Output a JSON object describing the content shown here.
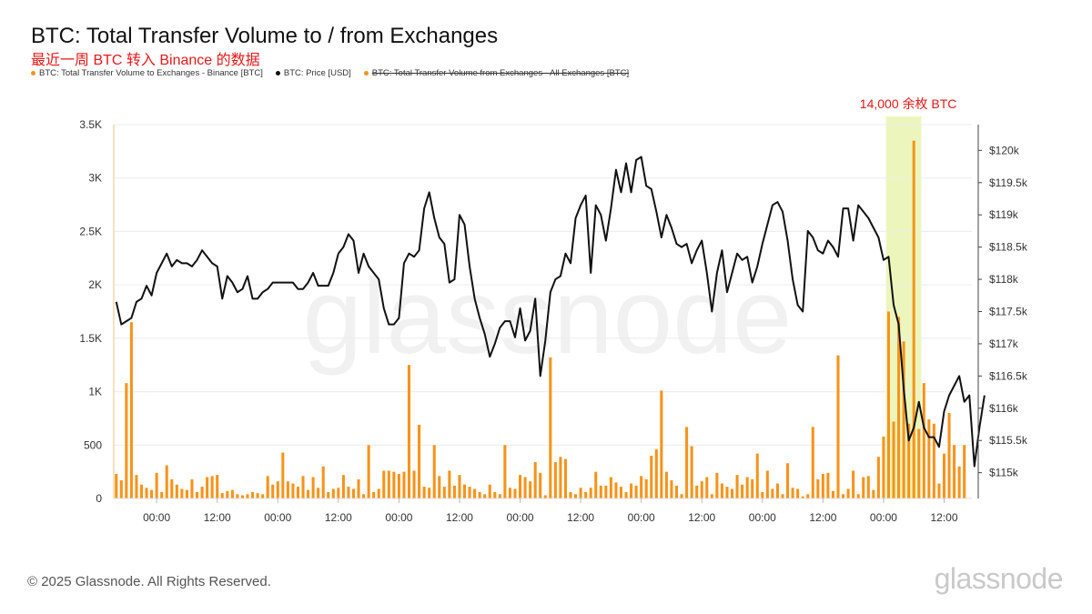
{
  "header": {
    "title": "BTC: Total Transfer Volume to / from Exchanges",
    "subtitle": "最近一周 BTC 转入 Binance 的数据"
  },
  "legend": [
    {
      "label": "BTC: Total Transfer Volume to Exchanges - Binance [BTC]",
      "color": "#f7931a",
      "struck": false
    },
    {
      "label": "BTC: Price [USD]",
      "color": "#111111",
      "struck": false
    },
    {
      "label": "BTC: Total Transfer Volume from Exchanges - All Exchanges [BTC]",
      "color": "#f7931a",
      "struck": true
    }
  ],
  "watermark": "glassnode",
  "annotation": "14,000 余枚 BTC",
  "footer": {
    "copyright": "© 2025 Glassnode. All Rights Reserved.",
    "logo": "glassnode"
  },
  "colors": {
    "bar": "#f7931a",
    "price": "#111111",
    "highlight": "#e9f5b0",
    "annotation": "#e8191a"
  },
  "chart_data": {
    "type": "bar",
    "x_tick_labels": [
      "00:00",
      "12:00",
      "00:00",
      "12:00",
      "00:00",
      "12:00",
      "00:00",
      "12:00",
      "00:00",
      "12:00",
      "00:00",
      "12:00",
      "00:00",
      "12:00"
    ],
    "x_tick_hours": [
      8,
      20,
      32,
      44,
      56,
      68,
      80,
      92,
      104,
      116,
      128,
      140,
      152,
      164
    ],
    "x_range_hours": [
      -0.5,
      169.5
    ],
    "interval_hours": 1,
    "left_axis": {
      "ticks": [
        0,
        500,
        1000,
        1500,
        2000,
        2500,
        3000,
        3500
      ],
      "labels": [
        "0",
        "500",
        "1K",
        "1.5K",
        "2K",
        "2.5K",
        "3K",
        "3.5K"
      ],
      "range": [
        0,
        3500
      ]
    },
    "right_axis": {
      "ticks": [
        115000,
        115500,
        116000,
        116500,
        117000,
        117500,
        118000,
        118500,
        119000,
        119500,
        120000
      ],
      "labels": [
        "$115k",
        "$115.5k",
        "$116k",
        "$116.5k",
        "$117k",
        "$117.5k",
        "$118k",
        "$118.5k",
        "$119k",
        "$119.5k",
        "$120k"
      ],
      "range": [
        114600,
        120400
      ]
    },
    "highlight_hours": [
      152.5,
      159.5
    ],
    "series": [
      {
        "name": "BTC: Total Transfer Volume to Exchanges - Binance [BTC]",
        "kind": "bar",
        "axis": "left",
        "values": [
          230,
          170,
          1080,
          1650,
          220,
          130,
          100,
          80,
          240,
          60,
          310,
          180,
          130,
          90,
          80,
          180,
          60,
          110,
          200,
          210,
          220,
          50,
          70,
          80,
          40,
          30,
          40,
          60,
          50,
          40,
          210,
          130,
          160,
          430,
          160,
          140,
          110,
          210,
          80,
          200,
          100,
          300,
          60,
          90,
          100,
          220,
          110,
          90,
          180,
          40,
          500,
          60,
          90,
          260,
          260,
          250,
          230,
          250,
          1250,
          260,
          690,
          110,
          100,
          500,
          210,
          110,
          260,
          120,
          220,
          130,
          110,
          90,
          60,
          40,
          130,
          60,
          40,
          500,
          100,
          90,
          220,
          200,
          160,
          340,
          240,
          30,
          1320,
          340,
          390,
          370,
          60,
          40,
          100,
          60,
          100,
          250,
          120,
          120,
          200,
          150,
          110,
          60,
          140,
          120,
          210,
          180,
          400,
          460,
          1010,
          250,
          170,
          120,
          40,
          670,
          490,
          120,
          160,
          200,
          40,
          240,
          140,
          110,
          90,
          220,
          130,
          200,
          180,
          420,
          60,
          260,
          90,
          140,
          40,
          330,
          100,
          90,
          20,
          40,
          670,
          180,
          230,
          240,
          70,
          1340,
          40,
          90,
          260,
          40,
          200,
          210,
          80,
          390,
          580,
          1750,
          720,
          1700,
          1470,
          700,
          3350,
          650,
          1080,
          740,
          700,
          140,
          420,
          800,
          500,
          300,
          500
        ]
      },
      {
        "name": "BTC: Price [USD]",
        "kind": "line",
        "axis": "right",
        "values": [
          117650,
          117300,
          117350,
          117400,
          117650,
          117700,
          117900,
          117750,
          118100,
          118250,
          118400,
          118200,
          118300,
          118250,
          118250,
          118200,
          118300,
          118450,
          118350,
          118250,
          118200,
          117700,
          118050,
          117950,
          117800,
          117850,
          118050,
          117700,
          117700,
          117800,
          117850,
          117950,
          117950,
          117950,
          117950,
          117950,
          117850,
          117850,
          117950,
          118100,
          117900,
          117900,
          117900,
          118100,
          118400,
          118500,
          118700,
          118600,
          118100,
          118400,
          118200,
          118100,
          118000,
          117550,
          117300,
          117300,
          117400,
          118250,
          118400,
          118350,
          118450,
          119100,
          119350,
          118950,
          118650,
          118550,
          117950,
          118000,
          119000,
          118850,
          118200,
          117700,
          117400,
          117150,
          116800,
          117000,
          117250,
          117350,
          117350,
          117100,
          117550,
          117050,
          117200,
          117700,
          116500,
          117050,
          117800,
          118000,
          118050,
          118400,
          118250,
          118950,
          119150,
          119300,
          118100,
          119150,
          119000,
          118600,
          119100,
          119700,
          119350,
          119800,
          119350,
          119850,
          119900,
          119450,
          119400,
          119050,
          118650,
          119000,
          118800,
          118550,
          118500,
          118550,
          118250,
          118450,
          118600,
          118100,
          117500,
          118100,
          118450,
          117800,
          118100,
          118400,
          118300,
          118350,
          117950,
          118200,
          118550,
          118850,
          119150,
          119200,
          119050,
          118600,
          118000,
          117600,
          117500,
          118750,
          118650,
          118450,
          118400,
          118600,
          118500,
          118350,
          119100,
          119100,
          118600,
          119150,
          119050,
          118950,
          118800,
          118650,
          118300,
          118350,
          117600,
          117300,
          116300,
          115500,
          115700,
          116100,
          115700,
          115550,
          115550,
          115400,
          115950,
          116200,
          116350,
          116500,
          116100,
          116200,
          115100,
          115700,
          116200
        ]
      }
    ]
  }
}
